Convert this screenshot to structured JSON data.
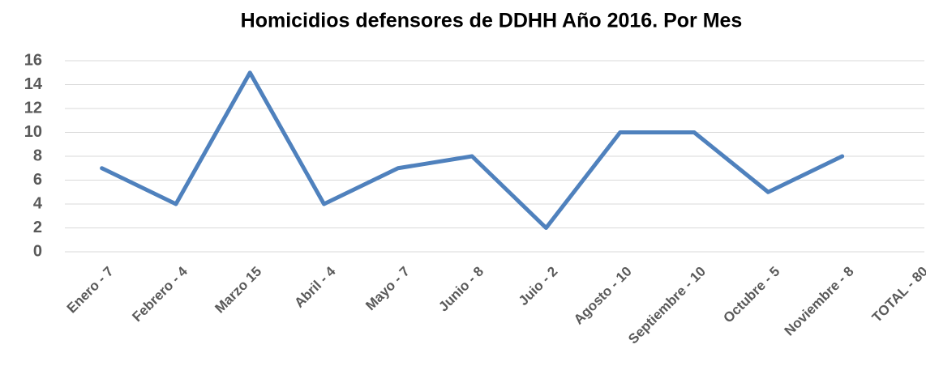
{
  "chart_data": {
    "type": "line",
    "title": "Homicidios defensores de DDHH Año 2016. Por Mes",
    "categories": [
      "Enero - 7",
      "Febrero - 4",
      "Marzo 15",
      "Abril - 4",
      "Mayo - 7",
      "Junio - 8",
      "Juio - 2",
      "Agosto - 10",
      "Septiembre - 10",
      "Octubre - 5",
      "Noviembre - 8",
      "TOTAL - 80"
    ],
    "series": [
      {
        "name": "Homicidios",
        "color": "#4f81bd",
        "values": [
          7,
          4,
          15,
          4,
          7,
          8,
          2,
          10,
          10,
          5,
          8,
          null
        ]
      }
    ],
    "ylim": [
      0,
      16
    ],
    "yticks": [
      0,
      2,
      4,
      6,
      8,
      10,
      12,
      14,
      16
    ],
    "grid": true,
    "legend": false
  }
}
